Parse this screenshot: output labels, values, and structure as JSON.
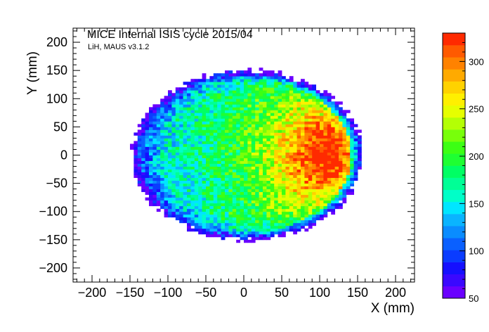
{
  "chart_data": {
    "type": "heatmap",
    "title": "MICE Internal ISIS cycle 2015/04",
    "subtitle": "LiH, MAUS v3.1.2",
    "xlabel": "X (mm)",
    "ylabel": "Y (mm)",
    "xlim": [
      -225,
      225
    ],
    "ylim": [
      -225,
      225
    ],
    "x_ticks": [
      -200,
      -150,
      -100,
      -50,
      0,
      50,
      100,
      150,
      200
    ],
    "y_ticks": [
      -200,
      -150,
      -100,
      -50,
      0,
      50,
      100,
      150,
      200
    ],
    "bin_width_mm": 5,
    "grid": false,
    "colorbar": {
      "range": [
        50,
        330
      ],
      "ticks": [
        50,
        100,
        150,
        200,
        250,
        300
      ],
      "colors": [
        "#6a00ff",
        "#3a08ff",
        "#1510ff",
        "#0a3cff",
        "#0a60ff",
        "#0a8cff",
        "#0ab4ff",
        "#00e6ff",
        "#00ffc8",
        "#00ff96",
        "#00ff64",
        "#1eff32",
        "#3cff14",
        "#78ff0a",
        "#b4ff05",
        "#e6ff00",
        "#fff000",
        "#ffd200",
        "#ffaa00",
        "#ff8200",
        "#ff5a00",
        "#ff2a00"
      ]
    },
    "distribution": {
      "shape": "ellipse",
      "center_mm": [
        5,
        0
      ],
      "semi_axes_mm": [
        152,
        150
      ],
      "edge_counts": 50,
      "plateau_counts": 190,
      "peak_counts": 330,
      "peak_location_mm": [
        110,
        0
      ],
      "peak_region": "right of center, near x = 100 to 130 mm, y = -30 to 30 mm"
    }
  }
}
